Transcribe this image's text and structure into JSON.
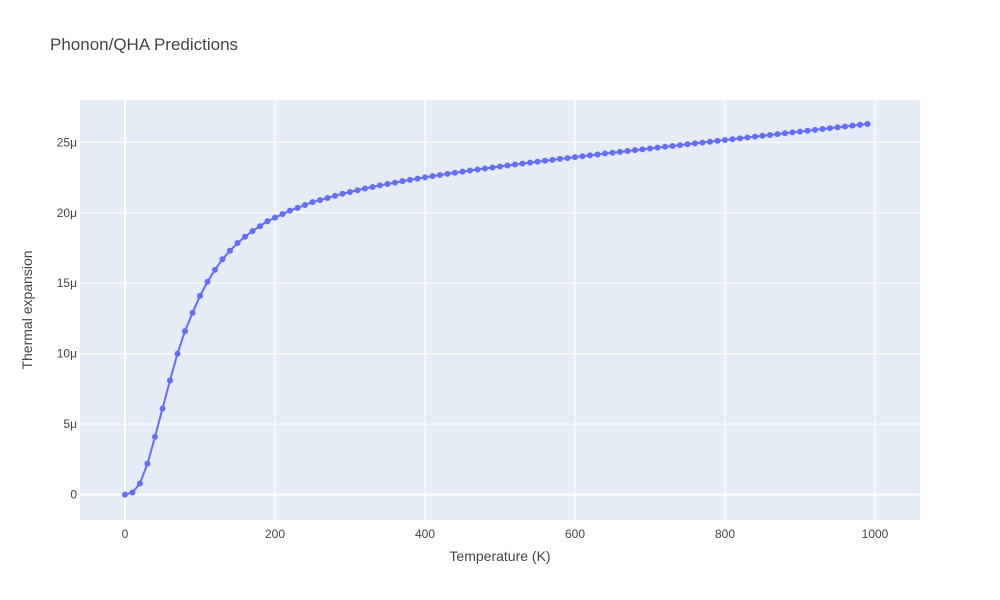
{
  "chart_data": {
    "type": "line",
    "title": "Phonon/QHA Predictions",
    "xlabel": "Temperature (K)",
    "ylabel": "Thermal expansion",
    "xlim": [
      -60,
      1060
    ],
    "ylim": [
      -1.8e-06,
      2.8e-05
    ],
    "xticks": [
      0,
      200,
      400,
      600,
      800,
      1000
    ],
    "xtick_labels": [
      "0",
      "200",
      "400",
      "600",
      "800",
      "1000"
    ],
    "yticks": [
      0,
      5e-06,
      1e-05,
      1.5e-05,
      2e-05,
      2.5e-05
    ],
    "ytick_labels": [
      "0",
      "5μ",
      "10μ",
      "15μ",
      "20μ",
      "25μ"
    ],
    "grid": true,
    "legend": false,
    "colors": {
      "series": "#636efa",
      "plot_bg": "#e5ecf6",
      "grid": "#ffffff",
      "text": "#444444"
    },
    "series": [
      {
        "mode": "lines+markers",
        "x": [
          0,
          10,
          20,
          30,
          40,
          50,
          60,
          70,
          80,
          90,
          100,
          110,
          120,
          130,
          140,
          150,
          160,
          170,
          180,
          190,
          200,
          210,
          220,
          230,
          240,
          250,
          260,
          270,
          280,
          290,
          300,
          310,
          320,
          330,
          340,
          350,
          360,
          370,
          380,
          390,
          400,
          410,
          420,
          430,
          440,
          450,
          460,
          470,
          480,
          490,
          500,
          510,
          520,
          530,
          540,
          550,
          560,
          570,
          580,
          590,
          600,
          610,
          620,
          630,
          640,
          650,
          660,
          670,
          680,
          690,
          700,
          710,
          720,
          730,
          740,
          750,
          760,
          770,
          780,
          790,
          800,
          810,
          820,
          830,
          840,
          850,
          860,
          870,
          880,
          890,
          900,
          910,
          920,
          930,
          940,
          950,
          960,
          970,
          980,
          990
        ],
        "y": [
          0,
          1.5e-07,
          8e-07,
          2.2e-06,
          4.1e-06,
          6.1e-06,
          8.1e-06,
          1e-05,
          1.16e-05,
          1.29e-05,
          1.41e-05,
          1.51e-05,
          1.595e-05,
          1.67e-05,
          1.73e-05,
          1.785e-05,
          1.83e-05,
          1.87e-05,
          1.905e-05,
          1.94e-05,
          1.965e-05,
          1.99e-05,
          2.015e-05,
          2.035e-05,
          2.055e-05,
          2.075e-05,
          2.09e-05,
          2.105e-05,
          2.12e-05,
          2.135e-05,
          2.147e-05,
          2.16e-05,
          2.172e-05,
          2.183e-05,
          2.194e-05,
          2.204e-05,
          2.214e-05,
          2.224e-05,
          2.233e-05,
          2.242e-05,
          2.251e-05,
          2.26e-05,
          2.268e-05,
          2.276e-05,
          2.284e-05,
          2.292e-05,
          2.3e-05,
          2.307e-05,
          2.314e-05,
          2.321e-05,
          2.328e-05,
          2.335e-05,
          2.342e-05,
          2.349e-05,
          2.356e-05,
          2.362e-05,
          2.369e-05,
          2.375e-05,
          2.382e-05,
          2.388e-05,
          2.395e-05,
          2.401e-05,
          2.407e-05,
          2.413e-05,
          2.42e-05,
          2.426e-05,
          2.432e-05,
          2.438e-05,
          2.444e-05,
          2.45e-05,
          2.456e-05,
          2.462e-05,
          2.468e-05,
          2.474e-05,
          2.48e-05,
          2.486e-05,
          2.492e-05,
          2.498e-05,
          2.504e-05,
          2.51e-05,
          2.516e-05,
          2.522e-05,
          2.528e-05,
          2.534e-05,
          2.54e-05,
          2.546e-05,
          2.552e-05,
          2.558e-05,
          2.564e-05,
          2.57e-05,
          2.576e-05,
          2.582e-05,
          2.588e-05,
          2.594e-05,
          2.6e-05,
          2.606e-05,
          2.612e-05,
          2.618e-05,
          2.624e-05,
          2.63e-05
        ]
      }
    ]
  }
}
